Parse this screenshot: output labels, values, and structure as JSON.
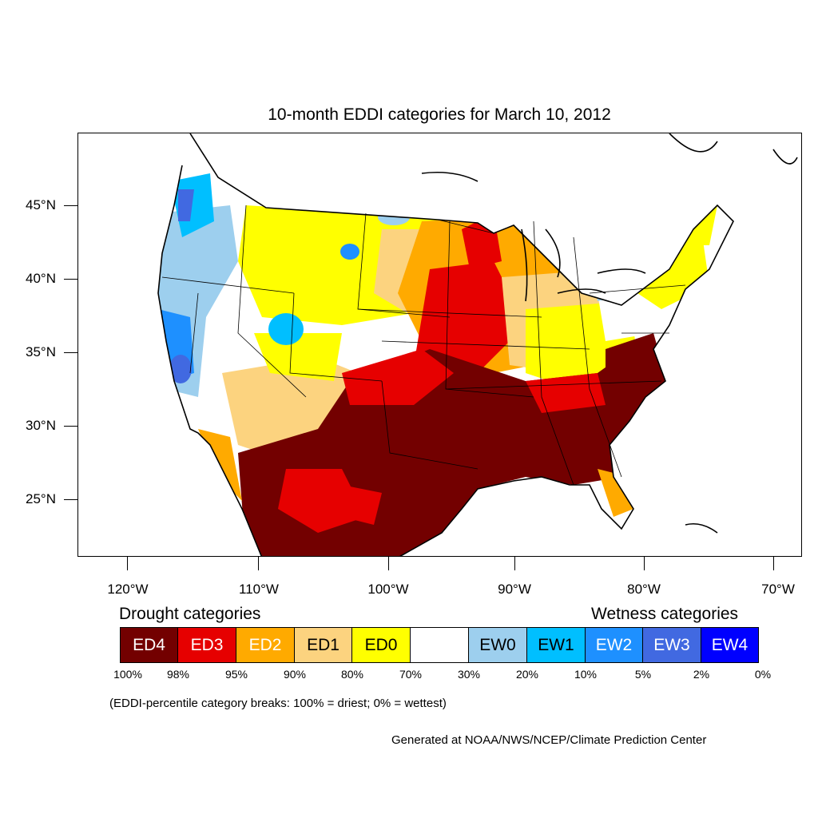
{
  "title": "10-month EDDI categories for March 10, 2012",
  "latitude_labels": [
    "45°N",
    "40°N",
    "35°N",
    "30°N",
    "25°N"
  ],
  "longitude_labels": [
    "120°W",
    "110°W",
    "100°W",
    "90°W",
    "80°W",
    "70°W"
  ],
  "legend": {
    "drought_heading": "Drought categories",
    "wetness_heading": "Wetness categories",
    "categories": [
      {
        "label": "ED4",
        "color": "#730000",
        "text_color": "#ffffff"
      },
      {
        "label": "ED3",
        "color": "#e60000",
        "text_color": "#ffffff"
      },
      {
        "label": "ED2",
        "color": "#ffaa00",
        "text_color": "#ffffff"
      },
      {
        "label": "ED1",
        "color": "#fcd37f",
        "text_color": "#000000"
      },
      {
        "label": "ED0",
        "color": "#ffff00",
        "text_color": "#000000"
      },
      {
        "label": "",
        "color": "#ffffff",
        "text_color": "#000000"
      },
      {
        "label": "EW0",
        "color": "#9dcfee",
        "text_color": "#000000"
      },
      {
        "label": "EW1",
        "color": "#00bfff",
        "text_color": "#000000"
      },
      {
        "label": "EW2",
        "color": "#1e90ff",
        "text_color": "#ffffff"
      },
      {
        "label": "EW3",
        "color": "#4169e1",
        "text_color": "#ffffff"
      },
      {
        "label": "EW4",
        "color": "#0000ff",
        "text_color": "#ffffff"
      }
    ],
    "percentiles": [
      "100%",
      "98%",
      "95%",
      "90%",
      "80%",
      "70%",
      "30%",
      "20%",
      "10%",
      "5%",
      "2%",
      "0%"
    ]
  },
  "breaks_note": "(EDDI-percentile category breaks: 100% = driest; 0% = wettest)",
  "credit": "Generated at NOAA/NWS/NCEP/Climate Prediction Center"
}
